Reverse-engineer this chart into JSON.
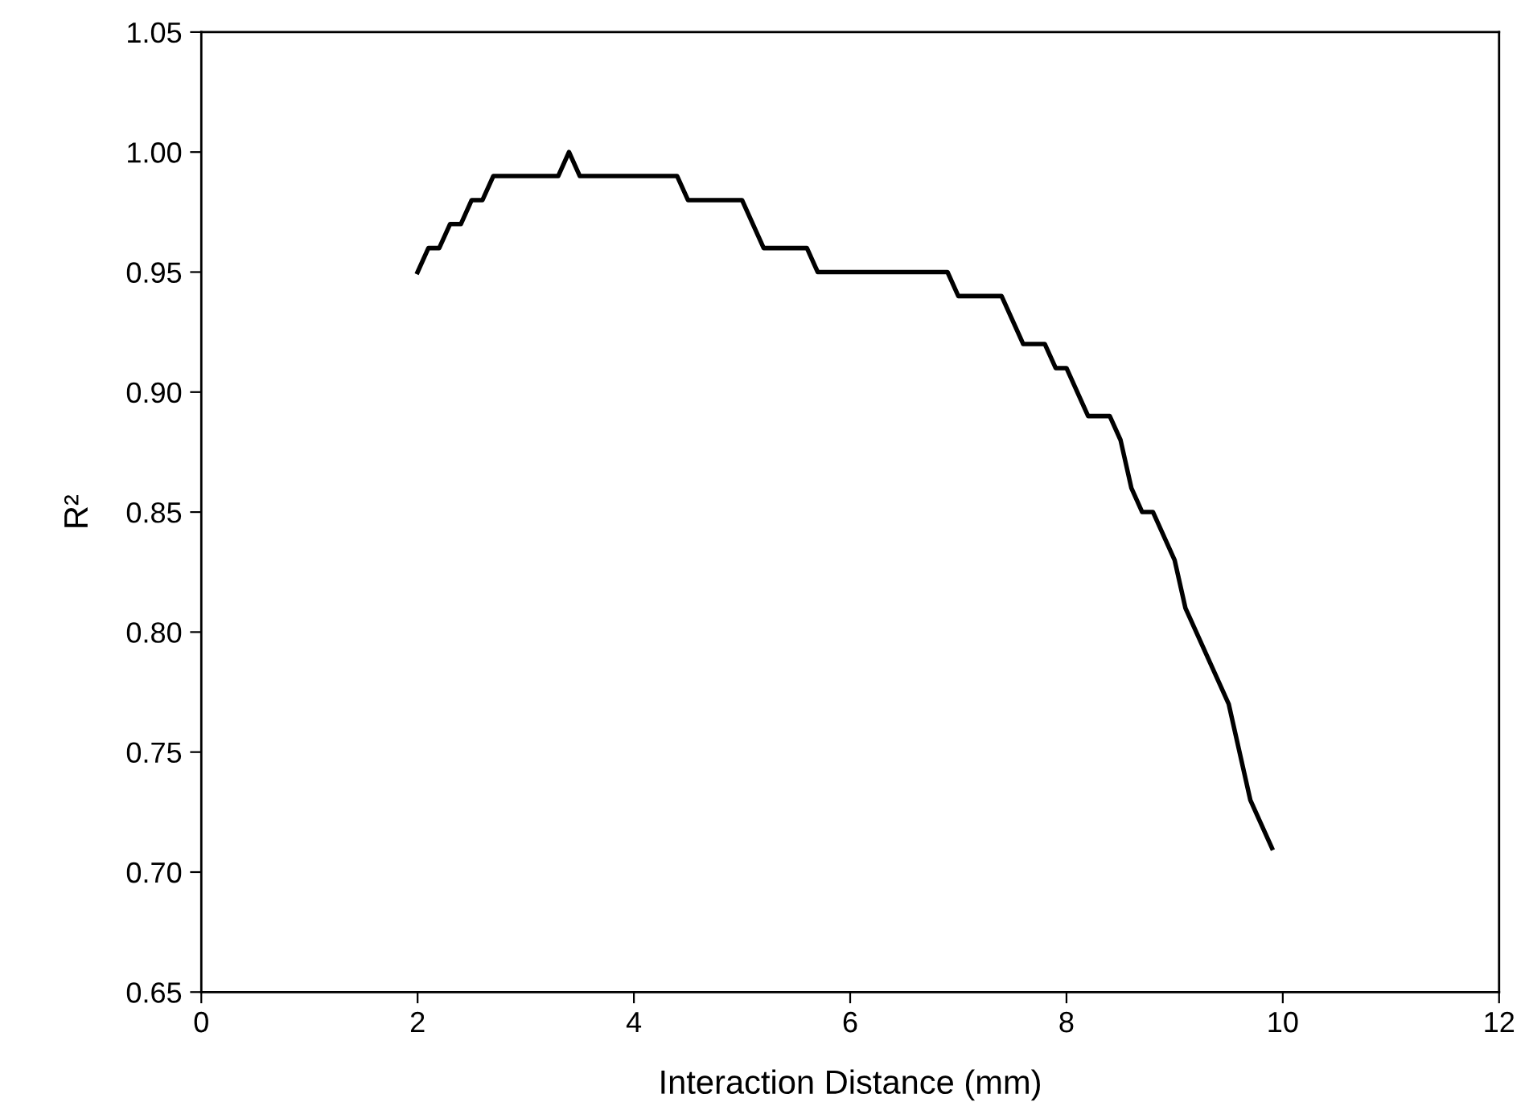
{
  "chart_data": {
    "type": "line",
    "xlabel": "Interaction Distance (mm)",
    "ylabel": "R²",
    "x": [
      2.0,
      2.1,
      2.2,
      2.3,
      2.4,
      2.5,
      2.6,
      2.7,
      3.3,
      3.4,
      3.5,
      4.4,
      4.5,
      5.0,
      5.2,
      5.6,
      5.7,
      6.9,
      7.0,
      7.4,
      7.6,
      7.8,
      7.9,
      8.0,
      8.2,
      8.4,
      8.5,
      8.6,
      8.7,
      8.8,
      9.0,
      9.1,
      9.5,
      9.7,
      9.9
    ],
    "series": [
      {
        "color": "#000000",
        "values": [
          0.95,
          0.96,
          0.96,
          0.97,
          0.97,
          0.98,
          0.98,
          0.99,
          0.99,
          1.0,
          0.99,
          0.99,
          0.98,
          0.98,
          0.96,
          0.96,
          0.95,
          0.95,
          0.94,
          0.94,
          0.92,
          0.92,
          0.91,
          0.91,
          0.89,
          0.89,
          0.88,
          0.86,
          0.85,
          0.85,
          0.83,
          0.81,
          0.77,
          0.73,
          0.71
        ]
      }
    ],
    "xlim": [
      0,
      12
    ],
    "xticks": [
      0,
      2,
      4,
      6,
      8,
      10,
      12
    ],
    "ylim": [
      0.65,
      1.05
    ],
    "yticks": [
      {
        "value": 0.65,
        "label": "0.65"
      },
      {
        "value": 0.7,
        "label": "0.70"
      },
      {
        "value": 0.75,
        "label": "0.75"
      },
      {
        "value": 0.8,
        "label": "0.80"
      },
      {
        "value": 0.85,
        "label": "0.85"
      },
      {
        "value": 0.9,
        "label": "0.90"
      },
      {
        "value": 0.95,
        "label": "0.95"
      },
      {
        "value": 1.0,
        "label": "1.00"
      },
      {
        "value": 1.05,
        "label": "1.05"
      }
    ],
    "grid": false,
    "marker": "none",
    "line_style": "solid"
  }
}
